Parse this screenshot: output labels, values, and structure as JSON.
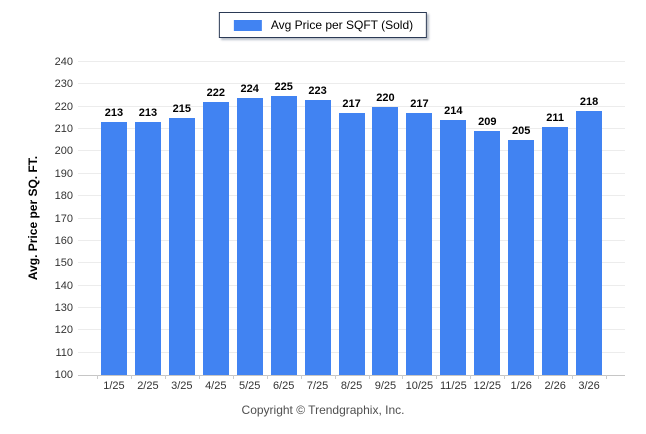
{
  "legend": {
    "label": "Avg Price per SQFT (Sold)",
    "swatch_color": "#4183f2"
  },
  "chart_data": {
    "type": "bar",
    "title": "",
    "series_name": "Avg Price per SQFT (Sold)",
    "categories": [
      "1/25",
      "2/25",
      "3/25",
      "4/25",
      "5/25",
      "6/25",
      "7/25",
      "8/25",
      "9/25",
      "10/25",
      "11/25",
      "12/25",
      "1/26",
      "2/26",
      "3/26"
    ],
    "values": [
      213,
      213,
      215,
      222,
      224,
      225,
      223,
      217,
      220,
      217,
      214,
      209,
      205,
      211,
      218
    ],
    "xlabel": "",
    "ylabel": "Avg. Price per SQ. FT.",
    "ylim": [
      100,
      240
    ],
    "ytick_step": 10,
    "grid": "horizontal",
    "legend_position": "top-center",
    "value_labels": true,
    "bar_color": "#4183f2",
    "gridline_color": "#ececec",
    "axis_line_color": "#c6c6c6"
  },
  "footer": {
    "copyright": "Copyright © Trendgraphix, Inc."
  }
}
